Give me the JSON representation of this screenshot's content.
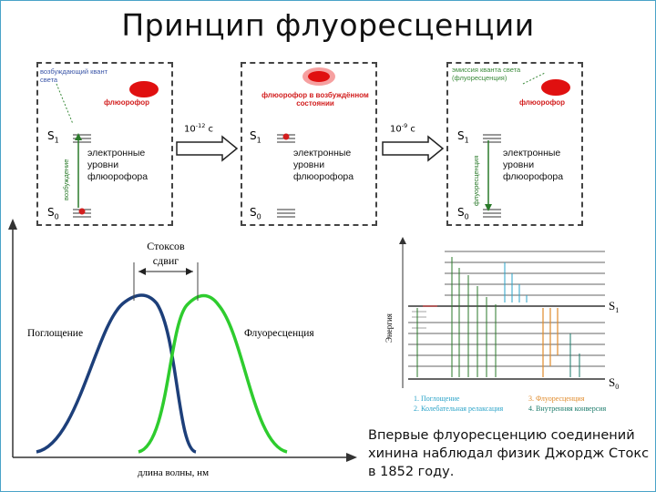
{
  "title": "Принцип флуоресценции",
  "panels": [
    {
      "excitation_label": "возбуждающий квант света",
      "fluorophore_label": "флюорофор",
      "s1": "S",
      "s0": "S",
      "levels_text": "электронные уровни флюорофора",
      "vertical_label": "возбуждение"
    },
    {
      "fluorophore_label": "флюорофор в возбуждённом состоянии",
      "s1": "S",
      "s0": "S",
      "levels_text": "электронные уровни флюорофора"
    },
    {
      "emission_label": "эмиссия кванта света (флуоресценция)",
      "fluorophore_label": "флюорофор",
      "s1": "S",
      "s0": "S",
      "levels_text": "электронные уровни флюорофора",
      "vertical_label": "флуоресценция"
    }
  ],
  "transitions": [
    {
      "base": "10",
      "exp": "-12",
      "unit": "с"
    },
    {
      "base": "10",
      "exp": "-9",
      "unit": "с"
    }
  ],
  "spectrum": {
    "stokes_label_1": "Стоксов",
    "stokes_label_2": "сдвиг",
    "absorption_label": "Поглощение",
    "fluorescence_label": "Флуоресценция",
    "xlabel": "длина волны, нм",
    "colors": {
      "absorption": "#1d3f7a",
      "fluorescence": "#2ecc2e"
    }
  },
  "jablonski": {
    "ylabel": "Энергия",
    "s1": "S",
    "s0": "S",
    "legend": [
      {
        "text": "1. Поглощение",
        "color": "#2aa3c8"
      },
      {
        "text": "2. Колебательная релаксация",
        "color": "#2aa3c8"
      },
      {
        "text": "3. Флуоресценция",
        "color": "#e08a2a"
      },
      {
        "text": "4. Внутренняя конверсия",
        "color": "#1a7a6a"
      }
    ]
  },
  "note": "Впервые флуоресценцию соединений хинина наблюдал физик Джордж Стокс в 1852 году."
}
